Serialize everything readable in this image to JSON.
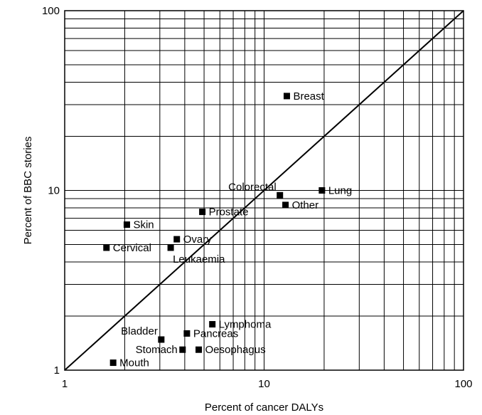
{
  "chart_data": {
    "type": "scatter",
    "title": "",
    "xlabel": "Percent of cancer DALYs",
    "ylabel": "Percent of BBC stories",
    "x_scale": "log",
    "y_scale": "log",
    "xlim": [
      1,
      100
    ],
    "ylim": [
      1,
      100
    ],
    "x_ticks": [
      "1",
      "10",
      "100"
    ],
    "y_ticks": [
      "1",
      "10",
      "100"
    ],
    "grid": true,
    "reference_line": "y = x",
    "marker_color": "#000000",
    "points": [
      {
        "label": "Breast",
        "x": 13.0,
        "y": 33.5,
        "anchor": "right"
      },
      {
        "label": "Lung",
        "x": 19.5,
        "y": 10.0,
        "anchor": "right"
      },
      {
        "label": "Colorectal",
        "x": 12.0,
        "y": 9.4,
        "anchor": "above-left"
      },
      {
        "label": "Other",
        "x": 12.8,
        "y": 8.3,
        "anchor": "right"
      },
      {
        "label": "Prostate",
        "x": 4.9,
        "y": 7.6,
        "anchor": "right"
      },
      {
        "label": "Skin",
        "x": 2.05,
        "y": 6.45,
        "anchor": "right"
      },
      {
        "label": "Ovary",
        "x": 3.65,
        "y": 5.35,
        "anchor": "right"
      },
      {
        "label": "Cervical",
        "x": 1.62,
        "y": 4.8,
        "anchor": "right"
      },
      {
        "label": "Leukaemia",
        "x": 3.4,
        "y": 4.8,
        "anchor": "below"
      },
      {
        "label": "Lymphoma",
        "x": 5.5,
        "y": 1.8,
        "anchor": "right"
      },
      {
        "label": "Pancreas",
        "x": 4.1,
        "y": 1.6,
        "anchor": "right"
      },
      {
        "label": "Bladder",
        "x": 3.05,
        "y": 1.48,
        "anchor": "above-left"
      },
      {
        "label": "Stomach",
        "x": 3.9,
        "y": 1.3,
        "anchor": "left"
      },
      {
        "label": "Oesophagus",
        "x": 4.7,
        "y": 1.3,
        "anchor": "right"
      },
      {
        "label": "Mouth",
        "x": 1.75,
        "y": 1.1,
        "anchor": "right"
      }
    ]
  }
}
